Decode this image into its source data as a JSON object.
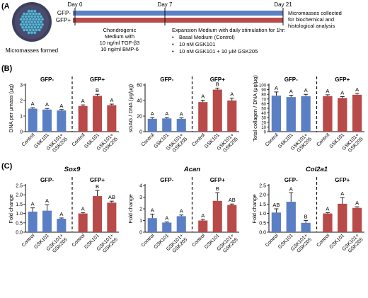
{
  "panel_labels": {
    "a": "(A)",
    "b": "(B)",
    "c": "(C)"
  },
  "timeline": {
    "photo_caption": "Micromasses formed",
    "days": [
      "Day 0",
      "Day 7",
      "Day 21"
    ],
    "rows": [
      "GFP-",
      "GFP+"
    ],
    "chondrogenic": [
      "Chondrogenic",
      "Medium with",
      "10 ng/ml TGF-β3",
      "10 ng/ml BMP-6"
    ],
    "expansion_title": "Expansion Medium with daily stimulation for 1hr:",
    "expansion_items": [
      "Basal Medium (Control)",
      "10 nM GSK101",
      "10 nM GSK101 + 10 μM GSK205"
    ],
    "end_note": [
      "Micromasses collected",
      "for biochemical and",
      "histological analysis"
    ],
    "bullet": "•"
  },
  "colors": {
    "gfp_minus": "#5b7fc4",
    "gfp_plus": "#b84a4a",
    "timeline_blue": "#5b7fc4",
    "timeline_red": "#b84a4a",
    "photo_bg": "#4a4c6e",
    "photo_beads": "#5bb8d8"
  },
  "chart_data": [
    {
      "type": "bar",
      "ylabel": "DNA per μmass (μg)",
      "ylim": [
        0,
        3
      ],
      "yticks": [
        0,
        1,
        2,
        3
      ],
      "ytick_labels": [
        "0",
        "1",
        "2",
        "3"
      ],
      "gene_title": "",
      "categories": [
        "Control",
        "GSK101",
        "GSK101+ GSK205"
      ],
      "series": [
        {
          "name": "GFP-",
          "values": [
            1.48,
            1.42,
            1.36
          ],
          "errors": [
            0.06,
            0.07,
            0.06
          ],
          "letters": [
            "A",
            "A",
            "A"
          ]
        },
        {
          "name": "GFP+",
          "values": [
            1.65,
            2.3,
            1.7
          ],
          "errors": [
            0.07,
            0.1,
            0.07
          ],
          "letters": [
            "A",
            "B",
            "A"
          ]
        }
      ]
    },
    {
      "type": "bar",
      "ylabel": "sGAG / DNA (μg/μg)",
      "ylim": [
        0,
        60
      ],
      "yticks": [
        0,
        20,
        40,
        60
      ],
      "ytick_labels": [
        "0",
        "20",
        "40",
        "60"
      ],
      "gene_title": "",
      "categories": [
        "Control",
        "GSK101",
        "GSK101+ GSK205"
      ],
      "series": [
        {
          "name": "GFP-",
          "values": [
            16.5,
            17,
            16.5
          ],
          "errors": [
            1.5,
            1.2,
            1.2
          ],
          "letters": [
            "A",
            "A",
            "A"
          ]
        },
        {
          "name": "GFP+",
          "values": [
            38,
            54,
            40
          ],
          "errors": [
            2.5,
            2,
            3
          ],
          "letters": [
            "A",
            "B",
            "A"
          ]
        }
      ]
    },
    {
      "type": "bar",
      "ylabel": "Total collagen / DNA (μg/μg)",
      "ylim": [
        0,
        100
      ],
      "yticks": [
        0,
        10,
        20,
        30,
        40,
        50,
        60,
        70,
        80,
        90,
        100
      ],
      "ytick_labels": [
        "0",
        "10",
        "20",
        "30",
        "40",
        "50",
        "60",
        "70",
        "80",
        "90",
        "100"
      ],
      "gene_title": "",
      "categories": [
        "Control",
        "GSK101",
        "GSK101+ GSK205"
      ],
      "series": [
        {
          "name": "GFP-",
          "values": [
            77,
            74,
            76
          ],
          "errors": [
            8,
            4,
            4
          ],
          "letters": [
            "A",
            "A",
            "A"
          ]
        },
        {
          "name": "GFP+",
          "values": [
            76,
            72,
            79
          ],
          "errors": [
            3,
            3,
            3
          ],
          "letters": [
            "A",
            "A",
            "A"
          ]
        }
      ]
    },
    {
      "type": "bar",
      "ylabel": "Fold change",
      "ylim": [
        0,
        2.5
      ],
      "yticks": [
        0,
        0.5,
        1.0,
        1.5,
        2.0,
        2.5
      ],
      "ytick_labels": [
        "0.0",
        "0.5",
        "1.0",
        "1.5",
        "2.0",
        "2.5"
      ],
      "gene_title": "Sox9",
      "categories": [
        "Control",
        "GSK101",
        "GSK101+ GSK205"
      ],
      "series": [
        {
          "name": "GFP-",
          "values": [
            1.1,
            1.15,
            0.72
          ],
          "errors": [
            0.2,
            0.32,
            0.04
          ],
          "letters": [
            "A",
            "A",
            "A"
          ]
        },
        {
          "name": "GFP+",
          "values": [
            1.0,
            1.93,
            1.58
          ],
          "errors": [
            0.05,
            0.3,
            0.08
          ],
          "letters": [
            "A",
            "B",
            "AB"
          ]
        }
      ]
    },
    {
      "type": "bar",
      "ylabel": "Fold change",
      "ylim": [
        0,
        4
      ],
      "yticks": [
        0,
        1,
        2,
        3,
        4
      ],
      "ytick_labels": [
        "0",
        "1",
        "2",
        "3",
        "4"
      ],
      "gene_title": "Acan",
      "categories": [
        "Control",
        "GSK101",
        "GSK101+ GSK205"
      ],
      "series": [
        {
          "name": "GFP-",
          "values": [
            1.2,
            0.82,
            1.37
          ],
          "errors": [
            0.35,
            0.05,
            0.1
          ],
          "letters": [
            "A",
            "A",
            "A"
          ]
        },
        {
          "name": "GFP+",
          "values": [
            1.0,
            2.68,
            2.33
          ],
          "errors": [
            0.1,
            0.7,
            0.08
          ],
          "letters": [
            "A",
            "B",
            "AB"
          ]
        }
      ]
    },
    {
      "type": "bar",
      "ylabel": "Fold change",
      "ylim": [
        0,
        2.5
      ],
      "yticks": [
        0,
        0.5,
        1.0,
        1.5,
        2.0,
        2.5
      ],
      "ytick_labels": [
        "0.0",
        "0.5",
        "1.0",
        "1.5",
        "2.0",
        "2.5"
      ],
      "gene_title": "Col2a1",
      "categories": [
        "Control",
        "GSK101",
        "GSK101+ GSK205"
      ],
      "series": [
        {
          "name": "GFP-",
          "values": [
            1.05,
            1.63,
            0.5
          ],
          "errors": [
            0.2,
            0.48,
            0.13
          ],
          "letters": [
            "AB",
            "A",
            "B"
          ]
        },
        {
          "name": "GFP+",
          "values": [
            1.0,
            1.52,
            1.3
          ],
          "errors": [
            0.04,
            0.33,
            0.06
          ],
          "letters": [
            "A",
            "A",
            "A"
          ]
        }
      ]
    }
  ]
}
